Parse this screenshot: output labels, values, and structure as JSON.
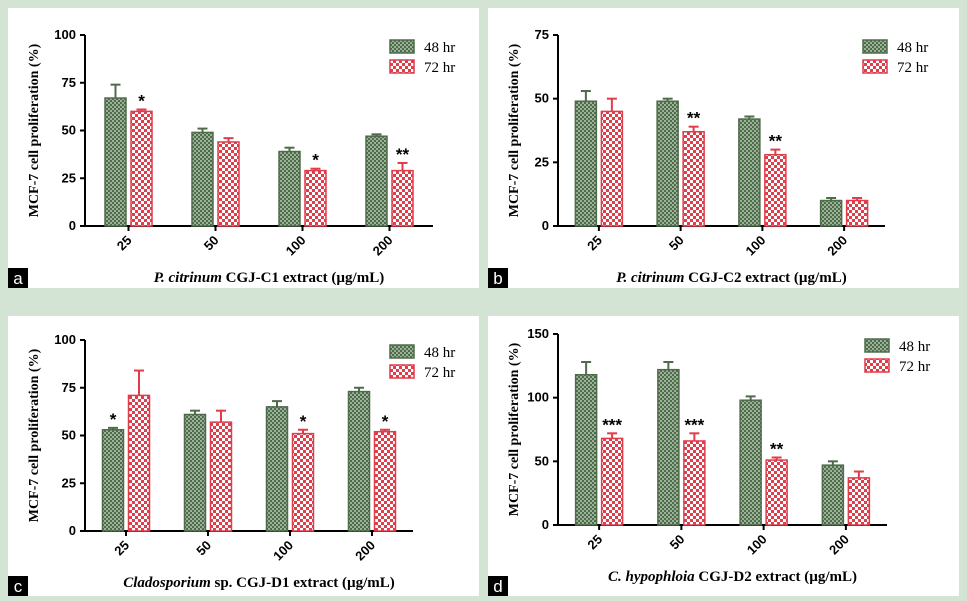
{
  "colors": {
    "s48": "#4e6b4a",
    "s72": "#e03c4a",
    "bg": "#d3e3d4"
  },
  "chart_data": [
    {
      "type": "bar",
      "panel_label": "a",
      "title": "",
      "xlabel_italic": "P. citrinum",
      "xlabel_rest": " CGJ-C1 extract (µg/mL)",
      "ylabel": "MCF-7 cell proliferation (%)",
      "categories": [
        "25",
        "50",
        "100",
        "200"
      ],
      "ylim": [
        0,
        100
      ],
      "yticks": [
        "0",
        "25",
        "50",
        "75",
        "100"
      ],
      "series": [
        {
          "name": "48 hr",
          "values": [
            67,
            49,
            39,
            47
          ],
          "errors": [
            7,
            2,
            2,
            1
          ]
        },
        {
          "name": "72 hr",
          "values": [
            60,
            44,
            29,
            29
          ],
          "errors": [
            1,
            2,
            1,
            4
          ]
        }
      ],
      "annotations": [
        "",
        "*",
        "",
        "",
        "",
        "*",
        "",
        "**"
      ],
      "legend": "top-right"
    },
    {
      "type": "bar",
      "panel_label": "b",
      "title": "",
      "xlabel_italic": "P. citrinum",
      "xlabel_rest": " CGJ-C2 extract (µg/mL)",
      "ylabel": "MCF-7 cell proliferation (%)",
      "categories": [
        "25",
        "50",
        "100",
        "200"
      ],
      "ylim": [
        0,
        75
      ],
      "yticks": [
        "0",
        "25",
        "50",
        "75"
      ],
      "series": [
        {
          "name": "48 hr",
          "values": [
            49,
            49,
            42,
            10
          ],
          "errors": [
            4,
            1,
            1,
            1
          ]
        },
        {
          "name": "72 hr",
          "values": [
            45,
            37,
            28,
            10
          ],
          "errors": [
            5,
            2,
            2,
            1
          ]
        }
      ],
      "annotations": [
        "",
        "",
        "",
        "**",
        "",
        "**",
        "",
        ""
      ],
      "legend": "top-right"
    },
    {
      "type": "bar",
      "panel_label": "c",
      "title": "",
      "xlabel_italic": "Cladosporium",
      "xlabel_rest": " sp. CGJ-D1 extract (µg/mL)",
      "ylabel": "MCF-7 cell proliferation (%)",
      "categories": [
        "25",
        "50",
        "100",
        "200"
      ],
      "ylim": [
        0,
        100
      ],
      "yticks": [
        "0",
        "25",
        "50",
        "75",
        "100"
      ],
      "series": [
        {
          "name": "48 hr",
          "values": [
            53,
            61,
            65,
            73
          ],
          "errors": [
            1,
            2,
            3,
            2
          ]
        },
        {
          "name": "72 hr",
          "values": [
            71,
            57,
            51,
            52
          ],
          "errors": [
            13,
            6,
            2,
            1
          ]
        }
      ],
      "annotations": [
        "*",
        "",
        "",
        "",
        "",
        "*",
        "",
        "*"
      ],
      "legend": "top-right"
    },
    {
      "type": "bar",
      "panel_label": "d",
      "title": "",
      "xlabel_italic": "C. hypophloia",
      "xlabel_rest": " CGJ-D2 extract (µg/mL)",
      "ylabel": "MCF-7 cell proliferation (%)",
      "categories": [
        "25",
        "50",
        "100",
        "200"
      ],
      "ylim": [
        0,
        150
      ],
      "yticks": [
        "0",
        "50",
        "100",
        "150"
      ],
      "series": [
        {
          "name": "48 hr",
          "values": [
            118,
            122,
            98,
            47
          ],
          "errors": [
            10,
            6,
            3,
            3
          ]
        },
        {
          "name": "72 hr",
          "values": [
            68,
            66,
            51,
            37
          ],
          "errors": [
            4,
            6,
            2,
            5
          ]
        }
      ],
      "annotations": [
        "",
        "***",
        "",
        "***",
        "",
        "**",
        "",
        ""
      ],
      "legend": "top-right"
    }
  ]
}
